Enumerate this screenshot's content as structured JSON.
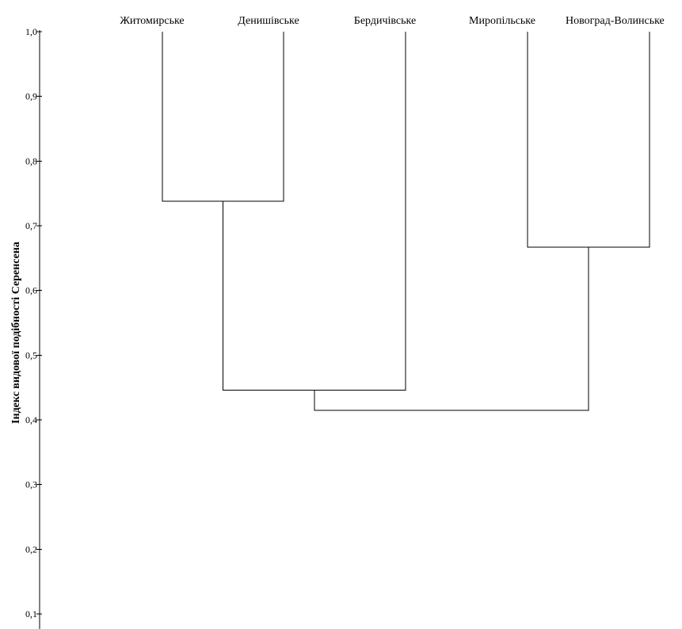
{
  "chart_data": {
    "type": "dendrogram",
    "ylabel": "Індекс видової подібності Серенсена",
    "ylim": [
      0.1,
      1.0
    ],
    "yticks": [
      "1,0",
      "0,9",
      "0,8",
      "0,7",
      "0,6",
      "0,5",
      "0,4",
      "0,3",
      "0,2",
      "0,1"
    ],
    "leaves": [
      "Житомирське",
      "Денишівське",
      "Бердичівське",
      "Миропільське",
      "Новоград-Волинське"
    ],
    "merges": [
      {
        "left": "Житомирське",
        "right": "Денишівське",
        "similarity": 0.738
      },
      {
        "left": "Миропільське",
        "right": "Новоград-Волинське",
        "similarity": 0.667
      },
      {
        "left": "Житомирське+Денишівське",
        "right": "Бердичівське",
        "similarity": 0.446
      },
      {
        "left": "Житомирське+Денишівське+Бердичівське",
        "right": "Миропільське+Новоград-Волинське",
        "similarity": 0.415
      }
    ]
  }
}
